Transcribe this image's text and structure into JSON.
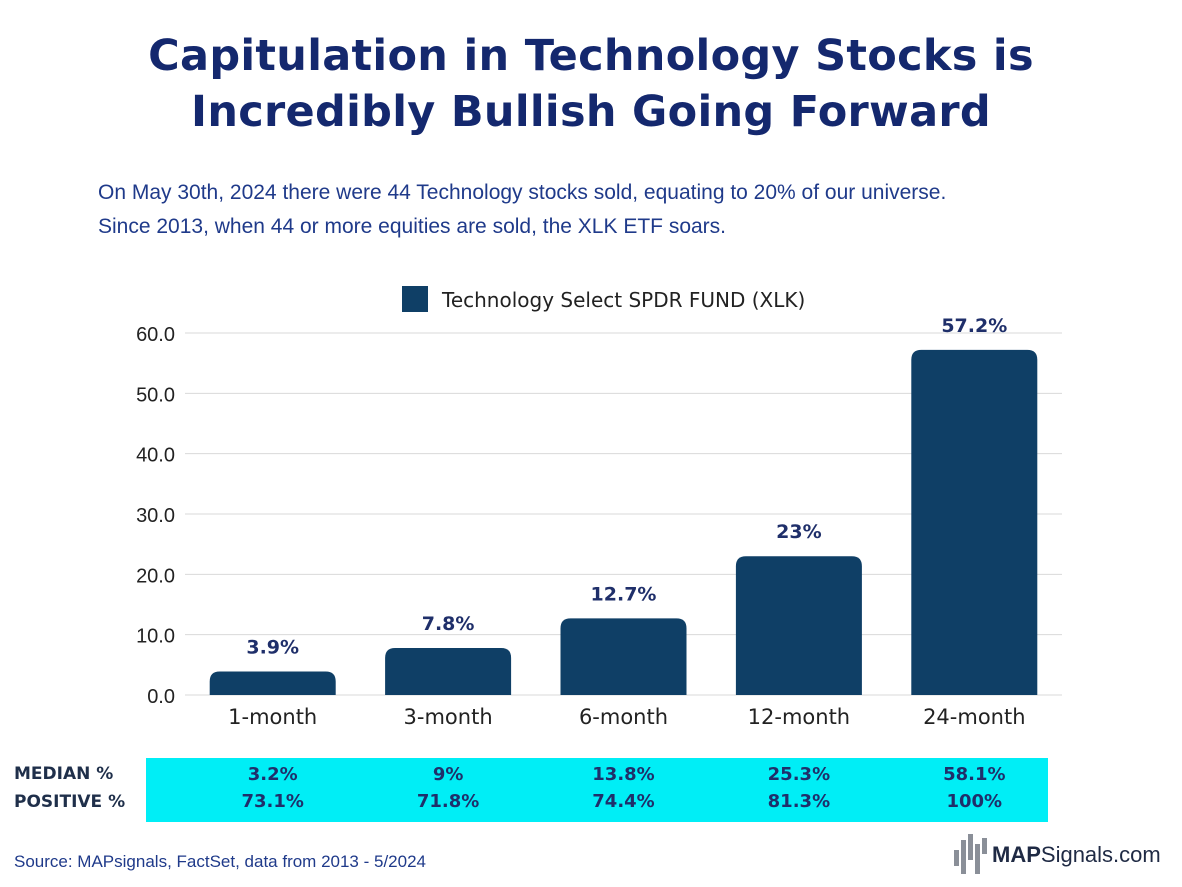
{
  "title_line1": "Capitulation in Technology Stocks is",
  "title_line2": "Incredibly Bullish Going Forward",
  "subtitle_line1": "On May 30th, 2024 there were 44 Technology stocks sold, equating to 20% of our universe.",
  "subtitle_line2": "Since 2013, when 44 or more equities are sold, the XLK ETF soars.",
  "colors": {
    "bar": "#0f3f66",
    "title": "#14286e",
    "stats_bg": "#00eef6"
  },
  "chart_data": {
    "type": "bar",
    "categories": [
      "1-month",
      "3-month",
      "6-month",
      "12-month",
      "24-month"
    ],
    "values": [
      3.9,
      7.8,
      12.7,
      23,
      57.2
    ],
    "data_labels": [
      "3.9%",
      "7.8%",
      "12.7%",
      "23%",
      "57.2%"
    ],
    "legend": "Technology Select SPDR FUND (XLK)",
    "legend_position": "top-center",
    "y_ticks": [
      "0.0",
      "10.0",
      "20.0",
      "30.0",
      "40.0",
      "50.0",
      "60.0"
    ],
    "ylim": [
      0,
      60
    ],
    "grid": true
  },
  "stats": {
    "median_label": "MEDIAN %",
    "positive_label": "POSITIVE %",
    "median": [
      "3.2%",
      "9%",
      "13.8%",
      "25.3%",
      "58.1%"
    ],
    "positive": [
      "73.1%",
      "71.8%",
      "74.4%",
      "81.3%",
      "100%"
    ]
  },
  "source": "Source: MAPsignals, FactSet, data from 2013 - 5/2024",
  "logo": {
    "bold": "MAP",
    "rest": "Signals.com"
  }
}
